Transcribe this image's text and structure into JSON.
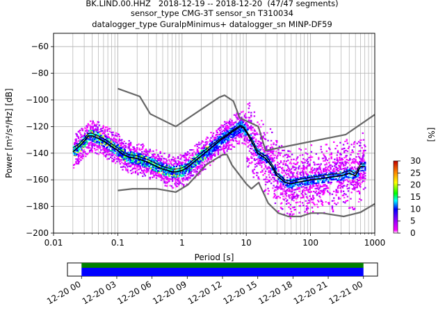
{
  "header": {
    "title_line1": "BK.LIND.00.HHZ   2018-12-19 -- 2018-12-20  (47/47 segments)",
    "title_line2": "sensor_type CMG-3T sensor_sn T310034",
    "title_line3": "datalogger_type GuralpMinimus+ datalogger_sn MINP-DF59"
  },
  "chart_data": [
    {
      "type": "heatmap",
      "title": "BK.LIND.00.HHZ   2018-12-19 -- 2018-12-20  (47/47 segments)",
      "xlabel": "Period [s]",
      "ylabel": "Power [m²/s⁴/Hz] [dB]",
      "x_scale": "log",
      "xlim": [
        0.01,
        1000
      ],
      "ylim": [
        -200,
        -50
      ],
      "x_ticks": [
        "0.01",
        "0.1",
        "1",
        "10",
        "100",
        "1000"
      ],
      "y_ticks": [
        "-60",
        "-80",
        "-100",
        "-120",
        "-140",
        "-160",
        "-180",
        "-200"
      ],
      "grid": true,
      "colorbar": {
        "label": "[%]",
        "ticks": [
          "0",
          "5",
          "10",
          "15",
          "20",
          "25",
          "30"
        ],
        "range": [
          0,
          30
        ]
      },
      "series": [
        {
          "role": "mean",
          "color": "#000000",
          "x": [
            0.02,
            0.025,
            0.03,
            0.035,
            0.04,
            0.05,
            0.06,
            0.07,
            0.08,
            0.1,
            0.12,
            0.15,
            0.2,
            0.3,
            0.4,
            0.5,
            0.6,
            0.7,
            0.8,
            1.0,
            1.2,
            1.5,
            2.0,
            3.0,
            4.0,
            5.0,
            6.0,
            7.0,
            8.0,
            9.0,
            10,
            12,
            15,
            20,
            25,
            30,
            40,
            50,
            60,
            80,
            100,
            150,
            200,
            300,
            400,
            500,
            600,
            700
          ],
          "y": [
            -139,
            -135,
            -131,
            -127,
            -127,
            -129,
            -131,
            -133,
            -135,
            -138,
            -141,
            -143,
            -144,
            -147,
            -150,
            -152,
            -153,
            -154,
            -154,
            -153,
            -151,
            -147,
            -142,
            -135,
            -130,
            -127,
            -124,
            -122,
            -120,
            -121,
            -124,
            -131,
            -140,
            -144,
            -150,
            -157,
            -162,
            -163,
            -162,
            -161,
            -160,
            -159,
            -158,
            -157,
            -155,
            -157,
            -150,
            -150
          ]
        },
        {
          "role": "mode",
          "color": "#000000",
          "x": [
            0.02,
            0.025,
            0.03,
            0.035,
            0.04,
            0.05,
            0.06,
            0.07,
            0.08,
            0.1,
            0.12,
            0.15,
            0.2,
            0.3,
            0.4,
            0.5,
            0.6,
            0.7,
            0.8,
            1.0,
            1.2,
            1.5,
            2.0,
            3.0,
            4.0,
            5.0,
            6.0,
            7.0,
            8.0,
            9.0,
            10,
            12,
            15,
            20,
            25,
            30,
            40,
            50,
            60,
            80,
            100,
            150,
            200,
            300,
            400,
            500,
            600,
            700
          ],
          "y": [
            -136,
            -133,
            -129,
            -125,
            -125,
            -127,
            -129,
            -131,
            -133,
            -136,
            -139,
            -141,
            -142,
            -145,
            -148,
            -150,
            -151,
            -152,
            -152,
            -151,
            -149,
            -145,
            -140,
            -133,
            -129,
            -126,
            -123,
            -121,
            -119,
            -120,
            -123,
            -129,
            -138,
            -142,
            -148,
            -155,
            -160,
            -161,
            -160,
            -159,
            -158,
            -157,
            -156,
            -155,
            -153,
            -155,
            -148,
            -148
          ]
        },
        {
          "role": "New High Noise Model",
          "color": "#666666",
          "x": [
            0.1,
            0.22,
            0.32,
            0.8,
            3.8,
            4.6,
            6.3,
            7.9,
            15.4,
            20,
            354.8,
            1000
          ],
          "y": [
            -91.5,
            -97.4,
            -110.5,
            -120,
            -98,
            -96.5,
            -101,
            -113.5,
            -120,
            -138,
            -126,
            -111
          ]
        },
        {
          "role": "New Low Noise Model",
          "color": "#666666",
          "x": [
            0.1,
            0.17,
            0.4,
            0.8,
            1.24,
            2.4,
            4.3,
            5.0,
            6.0,
            10,
            12,
            15.6,
            21.9,
            31.6,
            45,
            70,
            101,
            154,
            328,
            600,
            1000
          ],
          "y": [
            -168,
            -166.7,
            -166.7,
            -169.2,
            -163.7,
            -148.6,
            -141.1,
            -141.1,
            -149,
            -163,
            -166.7,
            -162.1,
            -177.5,
            -185,
            -187.5,
            -187.5,
            -185,
            -185,
            -187.5,
            -184.4,
            -178
          ]
        }
      ]
    },
    {
      "type": "timeline",
      "x_ticks": [
        "12-20 00",
        "12-20 03",
        "12-20 06",
        "12-20 09",
        "12-20 12",
        "12-20 15",
        "12-20 18",
        "12-20 21",
        "12-21 00"
      ],
      "x_range_hours": [
        -1.2,
        25.2
      ],
      "coverage": [
        {
          "name": "data",
          "color": "#0000ff",
          "start_hour": 0,
          "end_hour": 24
        },
        {
          "name": "psd",
          "color": "#008000",
          "start_hour": 0,
          "end_hour": 24
        }
      ]
    }
  ]
}
